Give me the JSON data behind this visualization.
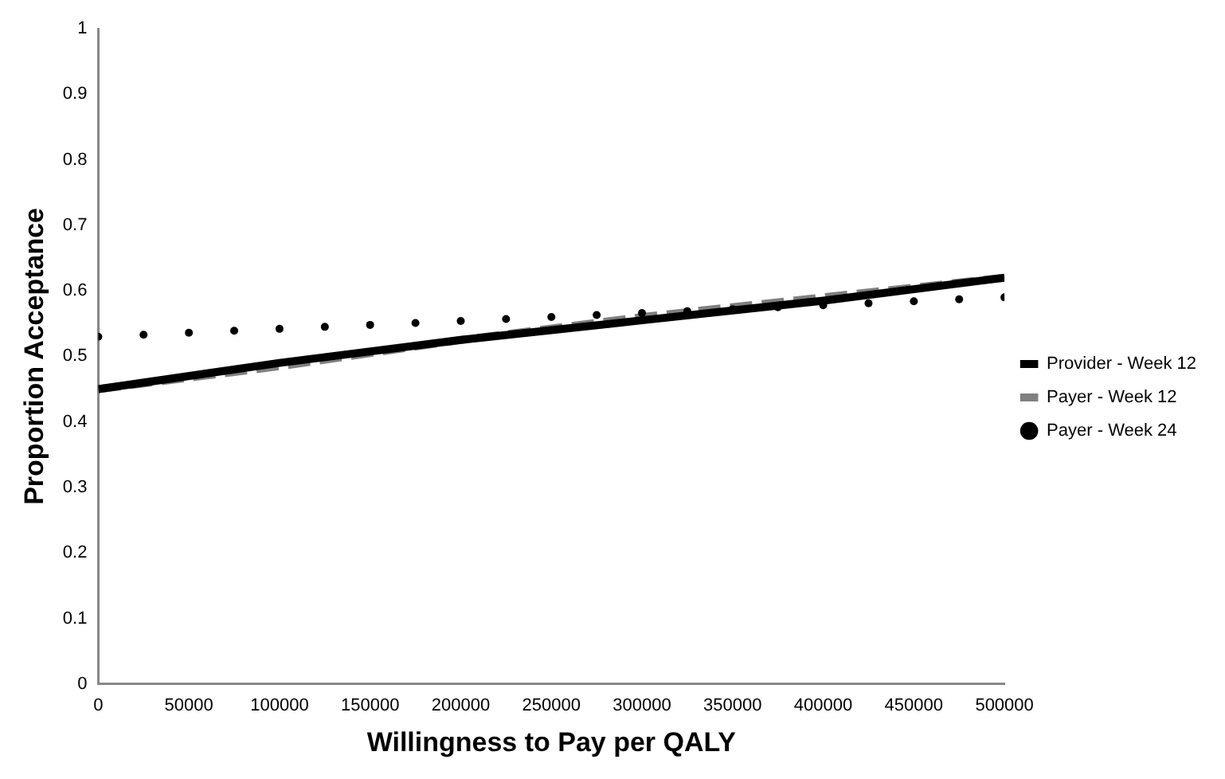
{
  "chart_data": {
    "type": "line",
    "xlabel": "Willingness to Pay per QALY",
    "ylabel": "Proportion Acceptance",
    "xlim": [
      0,
      500000
    ],
    "xticks": [
      0,
      50000,
      100000,
      150000,
      200000,
      250000,
      300000,
      350000,
      400000,
      450000,
      500000
    ],
    "ylim": [
      0,
      1
    ],
    "yticks": [
      0,
      0.1,
      0.2,
      0.3,
      0.4,
      0.5,
      0.6,
      0.7,
      0.8,
      0.9,
      1
    ],
    "grid": false,
    "legend": "right",
    "series": [
      {
        "name": "Provider - Week 12",
        "color": "#000000",
        "line_style": "solid",
        "marker": "none",
        "x": [
          0,
          100000,
          200000,
          300000,
          400000,
          500000
        ],
        "values": [
          0.45,
          0.49,
          0.525,
          0.555,
          0.585,
          0.62
        ]
      },
      {
        "name": "Payer - Week 12",
        "color": "#808080",
        "line_style": "dashed",
        "marker": "none",
        "x": [
          0,
          100000,
          200000,
          300000,
          400000,
          500000
        ],
        "values": [
          0.45,
          0.485,
          0.525,
          0.56,
          0.59,
          0.62
        ]
      },
      {
        "name": "Payer - Week 24",
        "type": "scatter",
        "color": "#000000",
        "marker": "circle",
        "x": [
          0,
          25000,
          50000,
          75000,
          100000,
          125000,
          150000,
          175000,
          200000,
          225000,
          250000,
          275000,
          300000,
          325000,
          350000,
          375000,
          400000,
          425000,
          450000,
          475000,
          500000
        ],
        "values": [
          0.53,
          0.533,
          0.536,
          0.539,
          0.542,
          0.545,
          0.548,
          0.551,
          0.554,
          0.557,
          0.56,
          0.563,
          0.566,
          0.569,
          0.572,
          0.575,
          0.578,
          0.581,
          0.584,
          0.587,
          0.59
        ]
      }
    ]
  }
}
